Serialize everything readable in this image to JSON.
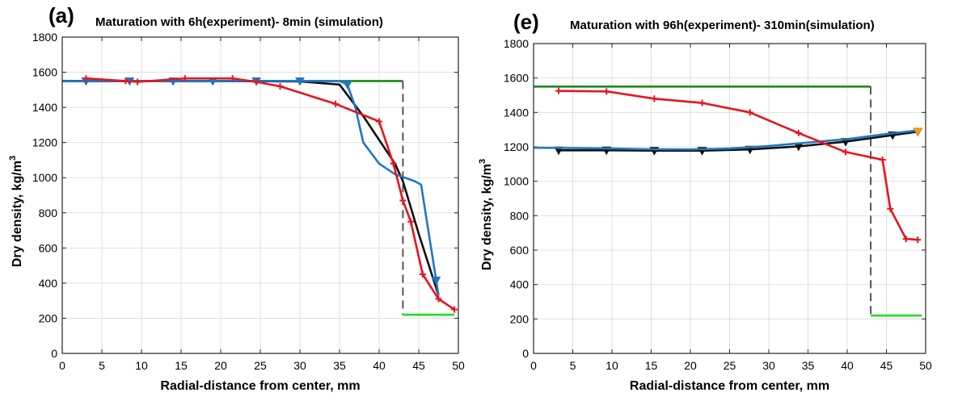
{
  "chart_data": [
    {
      "type": "line",
      "panel_label": "(a)",
      "title": "Maturation with 6h(experiment)- 8min (simulation)",
      "xlabel": "Radial-distance from center, mm",
      "ylabel": "Dry density, kg/m",
      "ylabel_sup": "3",
      "xlim": [
        0,
        50
      ],
      "ylim": [
        0,
        1800
      ],
      "xticks": [
        "0",
        "5",
        "10",
        "15",
        "20",
        "25",
        "30",
        "35",
        "40",
        "45",
        "50"
      ],
      "yticks": [
        "0",
        "200",
        "400",
        "600",
        "800",
        "1000",
        "1200",
        "1400",
        "1600",
        "1800"
      ],
      "grid": true,
      "series": [
        {
          "color": "#1a8a1a",
          "style": "solid",
          "marker": "none",
          "x": [
            0,
            43
          ],
          "y": [
            1550,
            1550
          ]
        },
        {
          "color": "#555555",
          "style": "dashed",
          "marker": "none",
          "x": [
            43,
            43
          ],
          "y": [
            1550,
            220
          ]
        },
        {
          "color": "#22dd22",
          "style": "solid",
          "marker": "none",
          "x": [
            43,
            49.5
          ],
          "y": [
            220,
            220
          ]
        },
        {
          "color": "#111111",
          "style": "solid",
          "marker": "none",
          "x": [
            0,
            10,
            20,
            30,
            35,
            38,
            42,
            43,
            45,
            47.5
          ],
          "y": [
            1550,
            1550,
            1550,
            1548,
            1530,
            1350,
            1080,
            980,
            680,
            330
          ]
        },
        {
          "color": "#1f77c4",
          "style": "solid",
          "marker": "triangle-down",
          "markers_at": [
            3,
            8.5,
            14,
            19,
            24.5,
            30,
            36,
            47.2
          ],
          "x": [
            0,
            10,
            20,
            30,
            35,
            36,
            37,
            38,
            40,
            42,
            44.5,
            45.3,
            47.5
          ],
          "y": [
            1550,
            1550,
            1550,
            1550,
            1550,
            1530,
            1400,
            1200,
            1080,
            1020,
            980,
            960,
            330
          ]
        },
        {
          "color": "#e8141e",
          "style": "solid",
          "marker": "plus",
          "x": [
            3,
            8,
            9.5,
            15.5,
            21.5,
            24.5,
            27.5,
            34.5,
            40,
            41.8,
            43,
            44,
            45.5,
            47.5,
            49.5
          ],
          "y": [
            1565,
            1550,
            1545,
            1565,
            1565,
            1545,
            1520,
            1420,
            1320,
            1080,
            870,
            750,
            450,
            310,
            250
          ]
        }
      ]
    },
    {
      "type": "line",
      "panel_label": "(e)",
      "title": "Maturation with 96h(experiment)- 310min(simulation)",
      "xlabel": "Radial-distance from center, mm",
      "ylabel": "Dry density, kg/m",
      "ylabel_sup": "3",
      "xlim": [
        0,
        50
      ],
      "ylim": [
        0,
        1800
      ],
      "xticks": [
        "0",
        "5",
        "10",
        "15",
        "20",
        "25",
        "30",
        "35",
        "40",
        "45",
        "50"
      ],
      "yticks": [
        "0",
        "200",
        "400",
        "600",
        "800",
        "1000",
        "1200",
        "1400",
        "1600",
        "1800"
      ],
      "grid": true,
      "series": [
        {
          "color": "#1a8a1a",
          "style": "solid",
          "marker": "none",
          "x": [
            0,
            43
          ],
          "y": [
            1550,
            1550
          ]
        },
        {
          "color": "#555555",
          "style": "dashed",
          "marker": "none",
          "x": [
            43,
            43
          ],
          "y": [
            1550,
            220
          ]
        },
        {
          "color": "#22dd22",
          "style": "solid",
          "marker": "none",
          "x": [
            43,
            49.5
          ],
          "y": [
            220,
            220
          ]
        },
        {
          "color": "#111111",
          "style": "solid",
          "marker": "triangle-down",
          "x": [
            3.2,
            9.3,
            15.4,
            21.5,
            27.6,
            33.8,
            39.8,
            45.8,
            49
          ],
          "y": [
            1180,
            1180,
            1178,
            1178,
            1185,
            1203,
            1230,
            1268,
            1288
          ]
        },
        {
          "color": "#1f77c4",
          "style": "solid",
          "marker": "none",
          "x": [
            0,
            5,
            10,
            15,
            20,
            25,
            30,
            35,
            40,
            45,
            49
          ],
          "y": [
            1195,
            1193,
            1190,
            1186,
            1185,
            1190,
            1205,
            1225,
            1245,
            1275,
            1295
          ]
        },
        {
          "color": "#f39c12",
          "style": "solid",
          "marker": "triangle-down",
          "x": [
            49
          ],
          "y": [
            1290
          ]
        },
        {
          "color": "#e8141e",
          "style": "solid",
          "marker": "plus",
          "x": [
            3.2,
            9.3,
            15.4,
            21.5,
            27.6,
            33.8,
            39.8,
            44.5,
            45.5,
            47.5,
            49
          ],
          "y": [
            1525,
            1522,
            1480,
            1455,
            1400,
            1280,
            1170,
            1125,
            840,
            665,
            660
          ]
        }
      ]
    }
  ]
}
